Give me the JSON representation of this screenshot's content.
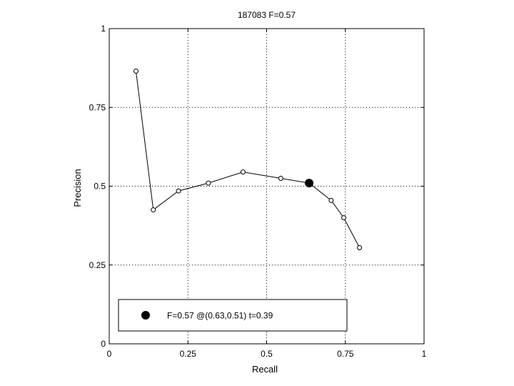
{
  "chart_data": {
    "type": "line",
    "title": "187083 F=0.57",
    "xlabel": "Recall",
    "ylabel": "Precision",
    "xlim": [
      0,
      1
    ],
    "ylim": [
      0,
      1
    ],
    "x_ticks": [
      0,
      0.25,
      0.5,
      0.75,
      1
    ],
    "y_ticks": [
      0,
      0.25,
      0.5,
      0.75,
      1
    ],
    "x_tick_labels": [
      "0",
      "0.25",
      "0.5",
      "0.75",
      "1"
    ],
    "y_tick_labels": [
      "0",
      "0.25",
      "0.5",
      "0.75",
      "1"
    ],
    "grid": true,
    "series": [
      {
        "x": [
          0.085,
          0.14,
          0.22,
          0.315,
          0.425,
          0.545,
          0.635,
          0.705,
          0.745,
          0.795
        ],
        "y": [
          0.865,
          0.425,
          0.485,
          0.51,
          0.545,
          0.525,
          0.51,
          0.455,
          0.4,
          0.305
        ],
        "marker": "open-circle",
        "color": "#000000"
      }
    ],
    "highlight": {
      "x": 0.635,
      "y": 0.51,
      "marker": "filled-circle"
    },
    "legend": {
      "placement": "bottom-left",
      "text": "F=0.57 @(0.63,0.51) t=0.39"
    }
  }
}
